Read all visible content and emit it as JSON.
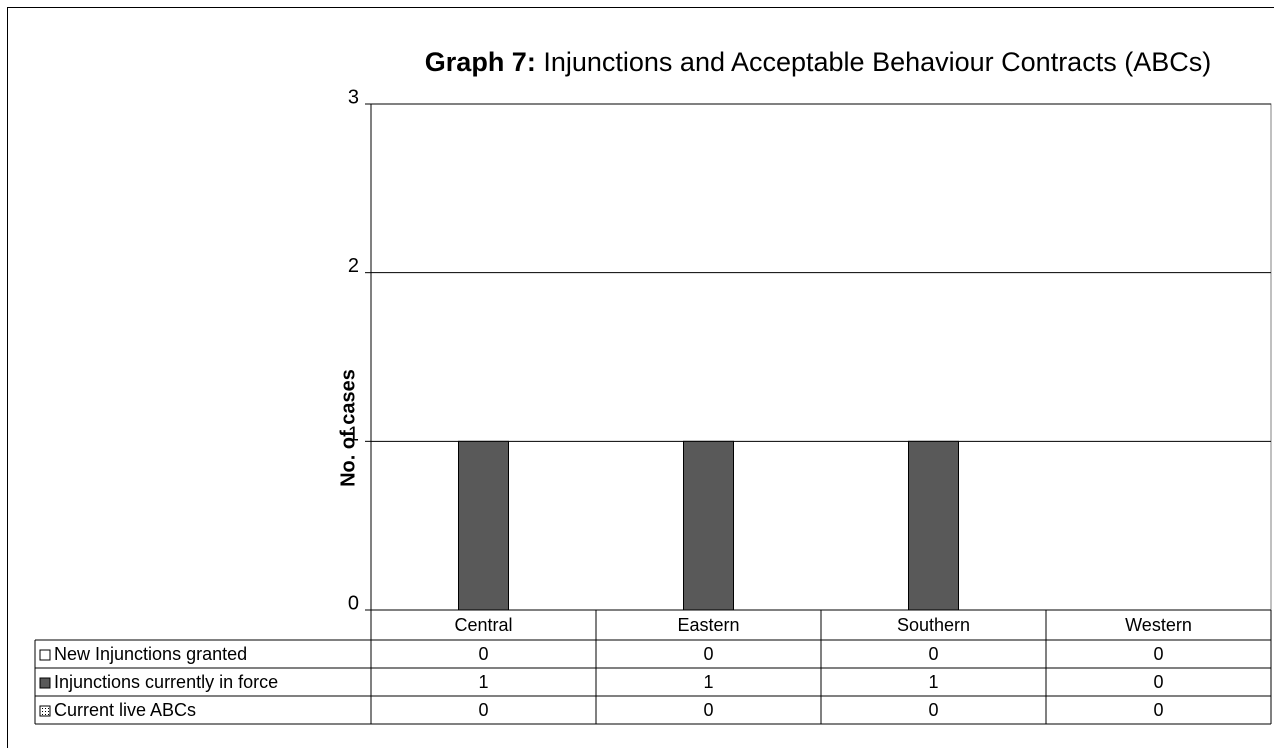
{
  "chart_data": {
    "type": "bar",
    "title_parts": [
      "Graph 7:",
      "Injunctions and  Acceptable Behaviour Contracts (ABCs)"
    ],
    "y_label": "No. of cases",
    "categories": [
      "Central",
      "Eastern",
      "Southern",
      "Western"
    ],
    "series": [
      {
        "name": "New Injunctions granted",
        "color": "#ffffff",
        "values": [
          0,
          0,
          0,
          0
        ]
      },
      {
        "name": "Injunctions currently in force",
        "color": "#595959",
        "values": [
          1,
          1,
          1,
          0
        ]
      },
      {
        "name": "Current live ABCs",
        "color": "#d9d9d9",
        "values": [
          0,
          0,
          0,
          0
        ]
      }
    ],
    "ylim": [
      0,
      3
    ],
    "yticks": [
      0,
      1,
      2,
      3
    ],
    "grid": true
  }
}
